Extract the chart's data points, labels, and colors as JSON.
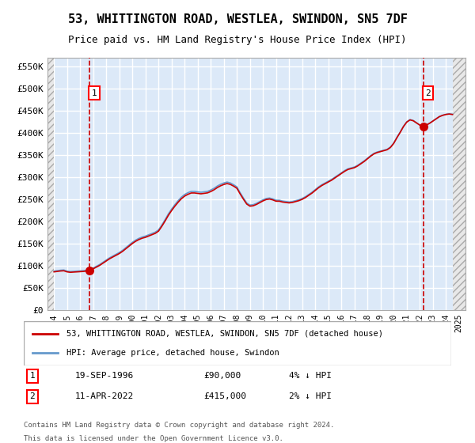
{
  "title_line1": "53, WHITTINGTON ROAD, WESTLEA, SWINDON, SN5 7DF",
  "title_line2": "Price paid vs. HM Land Registry's House Price Index (HPI)",
  "xlabel": "",
  "ylabel": "",
  "ylim": [
    0,
    570000
  ],
  "yticks": [
    0,
    50000,
    100000,
    150000,
    200000,
    250000,
    300000,
    350000,
    400000,
    450000,
    500000,
    550000
  ],
  "ytick_labels": [
    "£0",
    "£50K",
    "£100K",
    "£150K",
    "£200K",
    "£250K",
    "£300K",
    "£350K",
    "£400K",
    "£450K",
    "£500K",
    "£550K"
  ],
  "background_color": "#ffffff",
  "plot_bg_color": "#dce9f8",
  "hatch_color": "#c0c0c0",
  "grid_color": "#ffffff",
  "sale1_date": 1996.72,
  "sale1_price": 90000,
  "sale2_date": 2022.28,
  "sale2_price": 415000,
  "legend_label_red": "53, WHITTINGTON ROAD, WESTLEA, SWINDON, SN5 7DF (detached house)",
  "legend_label_blue": "HPI: Average price, detached house, Swindon",
  "annotation1_label": "1",
  "annotation1_date": "19-SEP-1996",
  "annotation1_price": "£90,000",
  "annotation1_hpi": "4% ↓ HPI",
  "annotation2_label": "2",
  "annotation2_date": "11-APR-2022",
  "annotation2_price": "£415,000",
  "annotation2_hpi": "2% ↓ HPI",
  "footer_line1": "Contains HM Land Registry data © Crown copyright and database right 2024.",
  "footer_line2": "This data is licensed under the Open Government Licence v3.0.",
  "xtick_years": [
    1994,
    1995,
    1996,
    1997,
    1998,
    1999,
    2000,
    2001,
    2002,
    2003,
    2004,
    2005,
    2006,
    2007,
    2008,
    2009,
    2010,
    2011,
    2012,
    2013,
    2014,
    2015,
    2016,
    2017,
    2018,
    2019,
    2020,
    2021,
    2022,
    2023,
    2024,
    2025
  ],
  "hpi_dates": [
    1994.0,
    1994.25,
    1994.5,
    1994.75,
    1995.0,
    1995.25,
    1995.5,
    1995.75,
    1996.0,
    1996.25,
    1996.5,
    1996.75,
    1997.0,
    1997.25,
    1997.5,
    1997.75,
    1998.0,
    1998.25,
    1998.5,
    1998.75,
    1999.0,
    1999.25,
    1999.5,
    1999.75,
    2000.0,
    2000.25,
    2000.5,
    2000.75,
    2001.0,
    2001.25,
    2001.5,
    2001.75,
    2002.0,
    2002.25,
    2002.5,
    2002.75,
    2003.0,
    2003.25,
    2003.5,
    2003.75,
    2004.0,
    2004.25,
    2004.5,
    2004.75,
    2005.0,
    2005.25,
    2005.5,
    2005.75,
    2006.0,
    2006.25,
    2006.5,
    2006.75,
    2007.0,
    2007.25,
    2007.5,
    2007.75,
    2008.0,
    2008.25,
    2008.5,
    2008.75,
    2009.0,
    2009.25,
    2009.5,
    2009.75,
    2010.0,
    2010.25,
    2010.5,
    2010.75,
    2011.0,
    2011.25,
    2011.5,
    2011.75,
    2012.0,
    2012.25,
    2012.5,
    2012.75,
    2013.0,
    2013.25,
    2013.5,
    2013.75,
    2014.0,
    2014.25,
    2014.5,
    2014.75,
    2015.0,
    2015.25,
    2015.5,
    2015.75,
    2016.0,
    2016.25,
    2016.5,
    2016.75,
    2017.0,
    2017.25,
    2017.5,
    2017.75,
    2018.0,
    2018.25,
    2018.5,
    2018.75,
    2019.0,
    2019.25,
    2019.5,
    2019.75,
    2020.0,
    2020.25,
    2020.5,
    2020.75,
    2021.0,
    2021.25,
    2021.5,
    2021.75,
    2022.0,
    2022.25,
    2022.5,
    2022.75,
    2023.0,
    2023.25,
    2023.5,
    2023.75,
    2024.0,
    2024.25,
    2024.5
  ],
  "hpi_values": [
    88000,
    89000,
    90000,
    90500,
    88000,
    87000,
    87500,
    88000,
    88500,
    89000,
    90000,
    92000,
    95000,
    99000,
    103000,
    108000,
    113000,
    118000,
    122000,
    126000,
    130000,
    135000,
    141000,
    147000,
    153000,
    158000,
    162000,
    165000,
    167000,
    170000,
    173000,
    176000,
    181000,
    192000,
    204000,
    217000,
    228000,
    238000,
    247000,
    255000,
    261000,
    265000,
    268000,
    268000,
    267000,
    266000,
    267000,
    268000,
    271000,
    275000,
    280000,
    284000,
    287000,
    289000,
    287000,
    283000,
    278000,
    265000,
    253000,
    242000,
    237000,
    238000,
    241000,
    245000,
    249000,
    252000,
    253000,
    251000,
    248000,
    248000,
    246000,
    245000,
    244000,
    245000,
    247000,
    249000,
    252000,
    256000,
    261000,
    266000,
    272000,
    278000,
    283000,
    287000,
    291000,
    295000,
    300000,
    305000,
    310000,
    315000,
    319000,
    321000,
    323000,
    327000,
    332000,
    337000,
    343000,
    349000,
    354000,
    357000,
    359000,
    361000,
    363000,
    368000,
    377000,
    390000,
    402000,
    415000,
    425000,
    430000,
    428000,
    423000,
    418000,
    415000,
    418000,
    422000,
    427000,
    432000,
    437000,
    440000,
    442000,
    443000,
    442000
  ],
  "red_color": "#cc0000",
  "blue_color": "#6699cc",
  "dashed_red_color": "#cc0000",
  "xlim_left": 1993.5,
  "xlim_right": 2025.5
}
